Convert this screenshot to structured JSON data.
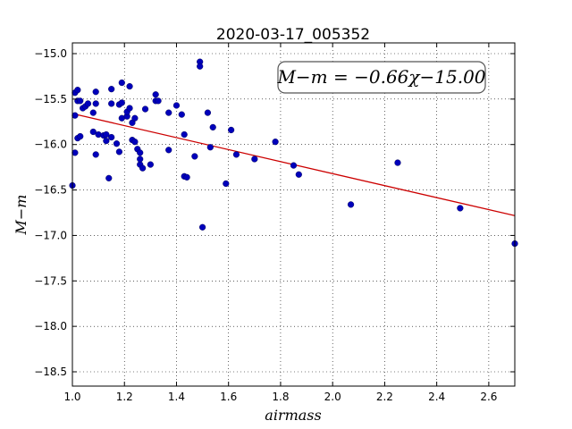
{
  "chart_data": {
    "type": "scatter",
    "title": "2020-03-17_005352",
    "xlabel": "airmass",
    "ylabel": "M−m",
    "xlim": [
      1.0,
      2.7
    ],
    "ylim": [
      -15.0,
      -18.5
    ],
    "y_inverted": true,
    "grid": true,
    "x_ticks": [
      1.0,
      1.2,
      1.4,
      1.6,
      1.8,
      2.0,
      2.2,
      2.4,
      2.6
    ],
    "x_tick_labels": [
      "1.0",
      "1.2",
      "1.4",
      "1.6",
      "1.8",
      "2.0",
      "2.2",
      "2.4",
      "2.6"
    ],
    "y_ticks": [
      -15.0,
      -15.5,
      -16.0,
      -16.5,
      -17.0,
      -17.5,
      -18.0,
      -18.5
    ],
    "y_tick_labels": [
      "−15.0",
      "−15.5",
      "−16.0",
      "−16.5",
      "−17.0",
      "−17.5",
      "−18.0",
      "−18.5"
    ],
    "annotation": "M−m = −0.66χ−15.00",
    "annotation_location": "top-right",
    "fit": {
      "slope": -0.66,
      "intercept": -15.0,
      "color": "#cc0000"
    },
    "point_color": "#0000bb",
    "points": [
      {
        "x": 1.0,
        "y": -16.45
      },
      {
        "x": 1.01,
        "y": -16.09
      },
      {
        "x": 1.01,
        "y": -15.43
      },
      {
        "x": 1.01,
        "y": -15.68
      },
      {
        "x": 1.02,
        "y": -15.4
      },
      {
        "x": 1.02,
        "y": -15.52
      },
      {
        "x": 1.03,
        "y": -15.52
      },
      {
        "x": 1.02,
        "y": -15.93
      },
      {
        "x": 1.03,
        "y": -15.91
      },
      {
        "x": 1.04,
        "y": -15.6
      },
      {
        "x": 1.05,
        "y": -15.58
      },
      {
        "x": 1.06,
        "y": -15.55
      },
      {
        "x": 1.08,
        "y": -15.65
      },
      {
        "x": 1.08,
        "y": -15.86
      },
      {
        "x": 1.09,
        "y": -16.11
      },
      {
        "x": 1.09,
        "y": -15.42
      },
      {
        "x": 1.09,
        "y": -15.55
      },
      {
        "x": 1.1,
        "y": -15.89
      },
      {
        "x": 1.12,
        "y": -15.9
      },
      {
        "x": 1.13,
        "y": -15.89
      },
      {
        "x": 1.13,
        "y": -15.96
      },
      {
        "x": 1.14,
        "y": -16.37
      },
      {
        "x": 1.15,
        "y": -15.55
      },
      {
        "x": 1.15,
        "y": -15.39
      },
      {
        "x": 1.15,
        "y": -15.92
      },
      {
        "x": 1.17,
        "y": -15.99
      },
      {
        "x": 1.18,
        "y": -15.56
      },
      {
        "x": 1.18,
        "y": -16.08
      },
      {
        "x": 1.19,
        "y": -15.54
      },
      {
        "x": 1.19,
        "y": -15.32
      },
      {
        "x": 1.19,
        "y": -15.71
      },
      {
        "x": 1.21,
        "y": -15.69
      },
      {
        "x": 1.21,
        "y": -15.64
      },
      {
        "x": 1.22,
        "y": -15.36
      },
      {
        "x": 1.22,
        "y": -15.6
      },
      {
        "x": 1.23,
        "y": -15.76
      },
      {
        "x": 1.23,
        "y": -15.95
      },
      {
        "x": 1.24,
        "y": -15.71
      },
      {
        "x": 1.24,
        "y": -15.97
      },
      {
        "x": 1.25,
        "y": -16.05
      },
      {
        "x": 1.26,
        "y": -16.09
      },
      {
        "x": 1.26,
        "y": -16.22
      },
      {
        "x": 1.26,
        "y": -16.16
      },
      {
        "x": 1.27,
        "y": -16.26
      },
      {
        "x": 1.28,
        "y": -15.61
      },
      {
        "x": 1.3,
        "y": -16.22
      },
      {
        "x": 1.32,
        "y": -15.45
      },
      {
        "x": 1.32,
        "y": -15.52
      },
      {
        "x": 1.33,
        "y": -15.52
      },
      {
        "x": 1.37,
        "y": -15.65
      },
      {
        "x": 1.37,
        "y": -16.06
      },
      {
        "x": 1.4,
        "y": -15.57
      },
      {
        "x": 1.42,
        "y": -15.67
      },
      {
        "x": 1.43,
        "y": -15.89
      },
      {
        "x": 1.43,
        "y": -16.35
      },
      {
        "x": 1.44,
        "y": -16.36
      },
      {
        "x": 1.47,
        "y": -16.13
      },
      {
        "x": 1.49,
        "y": -15.09
      },
      {
        "x": 1.49,
        "y": -15.14
      },
      {
        "x": 1.5,
        "y": -16.91
      },
      {
        "x": 1.52,
        "y": -15.65
      },
      {
        "x": 1.53,
        "y": -16.03
      },
      {
        "x": 1.54,
        "y": -15.81
      },
      {
        "x": 1.59,
        "y": -16.43
      },
      {
        "x": 1.61,
        "y": -15.84
      },
      {
        "x": 1.63,
        "y": -16.11
      },
      {
        "x": 1.7,
        "y": -16.16
      },
      {
        "x": 1.78,
        "y": -15.97
      },
      {
        "x": 1.85,
        "y": -16.23
      },
      {
        "x": 1.87,
        "y": -16.33
      },
      {
        "x": 2.07,
        "y": -16.66
      },
      {
        "x": 2.25,
        "y": -16.2
      },
      {
        "x": 2.49,
        "y": -16.7
      },
      {
        "x": 2.7,
        "y": -17.09
      }
    ]
  }
}
